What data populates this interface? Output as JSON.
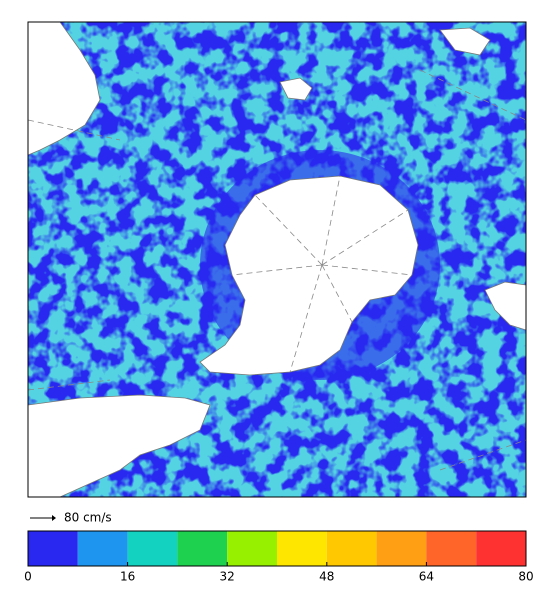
{
  "legend": {
    "reference_arrow": "80 cm/s"
  },
  "colorbar": {
    "lim": [
      0,
      80
    ],
    "bins": [
      0,
      8,
      16,
      24,
      32,
      40,
      48,
      56,
      64,
      72,
      80
    ],
    "colors": [
      "#2828f0",
      "#1e96f0",
      "#14d2c0",
      "#1ed250",
      "#96f000",
      "#ffe600",
      "#ffc800",
      "#ffa014",
      "#ff6428",
      "#ff3232"
    ],
    "ticks": [
      0,
      16,
      32,
      48,
      64,
      80
    ]
  }
}
